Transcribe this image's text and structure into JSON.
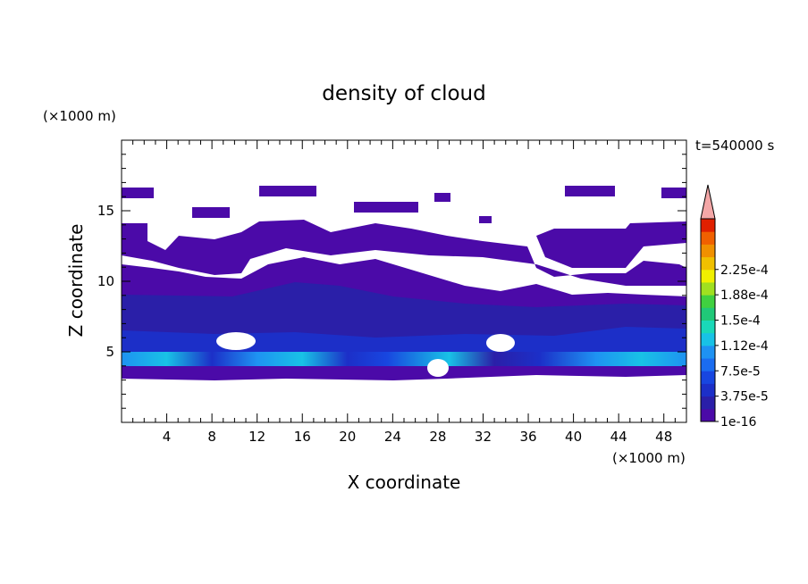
{
  "chart_data": {
    "type": "heatmap",
    "title": "density of cloud",
    "xlabel": "X coordinate",
    "ylabel": "Z coordinate",
    "x_unit": "(×1000 m)",
    "y_unit": "(×1000 m)",
    "time_label": "t=540000 s",
    "xlim": [
      0,
      50
    ],
    "ylim": [
      0,
      20
    ],
    "x_ticks": [
      4,
      8,
      12,
      16,
      20,
      24,
      28,
      32,
      36,
      40,
      44,
      48
    ],
    "y_ticks": [
      5,
      10,
      15
    ],
    "colorbar": {
      "labels": [
        "1e-16",
        "3.75e-5",
        "7.5e-5",
        "1.12e-4",
        "1.5e-4",
        "1.88e-4",
        "2.25e-4"
      ],
      "colors": [
        "#4b0aa8",
        "#2a1fa8",
        "#1c2fc8",
        "#1846e0",
        "#1a6cf0",
        "#1e92f2",
        "#18c2e6",
        "#1ad8b8",
        "#20c878",
        "#40d040",
        "#a0e020",
        "#f0f000",
        "#f0c000",
        "#f09000",
        "#f06000",
        "#e02000"
      ],
      "overflow_color": "#f4a7a7"
    }
  }
}
